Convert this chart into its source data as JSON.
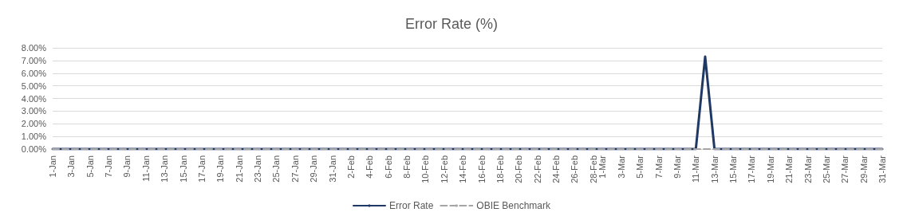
{
  "chart_data": {
    "type": "line",
    "title": "Error Rate (%)",
    "categories": [
      "1-Jan",
      null,
      "3-Jan",
      null,
      "5-Jan",
      null,
      "7-Jan",
      null,
      "9-Jan",
      null,
      "11-Jan",
      null,
      "13-Jan",
      null,
      "15-Jan",
      null,
      "17-Jan",
      null,
      "19-Jan",
      null,
      "21-Jan",
      null,
      "23-Jan",
      null,
      "25-Jan",
      null,
      "27-Jan",
      null,
      "29-Jan",
      null,
      "31-Jan",
      null,
      "2-Feb",
      null,
      "4-Feb",
      null,
      "6-Feb",
      null,
      "8-Feb",
      null,
      "10-Feb",
      null,
      "12-Feb",
      null,
      "14-Feb",
      null,
      "16-Feb",
      null,
      "18-Feb",
      null,
      "20-Feb",
      null,
      "22-Feb",
      null,
      "24-Feb",
      null,
      "26-Feb",
      null,
      "28-Feb",
      "1-Mar",
      null,
      "3-Mar",
      null,
      "5-Mar",
      null,
      "7-Mar",
      null,
      "9-Mar",
      null,
      "11-Mar",
      null,
      "13-Mar",
      null,
      "15-Mar",
      null,
      "17-Mar",
      null,
      "19-Mar",
      null,
      "21-Mar",
      null,
      "23-Mar",
      null,
      "25-Mar",
      null,
      "27-Mar",
      null,
      "29-Mar",
      null,
      "31-Mar"
    ],
    "series": [
      {
        "name": "Error Rate",
        "color": "#1f3864",
        "line_style": "solid",
        "values": [
          0,
          0,
          0,
          0,
          0,
          0,
          0,
          0,
          0,
          0,
          0,
          0,
          0,
          0,
          0,
          0,
          0,
          0,
          0,
          0,
          0,
          0,
          0,
          0,
          0,
          0,
          0,
          0,
          0,
          0,
          0,
          0,
          0,
          0,
          0,
          0,
          0,
          0,
          0,
          0,
          0,
          0,
          0,
          0,
          0,
          0,
          0,
          0,
          0,
          0,
          0,
          0,
          0,
          0,
          0,
          0,
          0,
          0,
          0,
          0,
          0,
          0,
          0,
          0,
          0,
          0,
          0,
          0,
          0,
          0,
          7.3,
          0,
          0,
          0,
          0,
          0,
          0,
          0,
          0,
          0,
          0,
          0,
          0,
          0,
          0,
          0,
          0,
          0,
          0,
          0
        ]
      },
      {
        "name": "OBIE Benchmark",
        "color": "#a5a5a5",
        "line_style": "dashed",
        "values": [
          0,
          0,
          0,
          0,
          0,
          0,
          0,
          0,
          0,
          0,
          0,
          0,
          0,
          0,
          0,
          0,
          0,
          0,
          0,
          0,
          0,
          0,
          0,
          0,
          0,
          0,
          0,
          0,
          0,
          0,
          0,
          0,
          0,
          0,
          0,
          0,
          0,
          0,
          0,
          0,
          0,
          0,
          0,
          0,
          0,
          0,
          0,
          0,
          0,
          0,
          0,
          0,
          0,
          0,
          0,
          0,
          0,
          0,
          0,
          0,
          0,
          0,
          0,
          0,
          0,
          0,
          0,
          0,
          0,
          0,
          0,
          0,
          0,
          0,
          0,
          0,
          0,
          0,
          0,
          0,
          0,
          0,
          0,
          0,
          0,
          0,
          0,
          0,
          0,
          0
        ]
      }
    ],
    "ylim": [
      0,
      8
    ],
    "yticks": [
      {
        "value": 0,
        "label": "0.00%"
      },
      {
        "value": 1,
        "label": "1.00%"
      },
      {
        "value": 2,
        "label": "2.00%"
      },
      {
        "value": 3,
        "label": "3.00%"
      },
      {
        "value": 4,
        "label": "4.00%"
      },
      {
        "value": 5,
        "label": "5.00%"
      },
      {
        "value": 6,
        "label": "6.00%"
      },
      {
        "value": 7,
        "label": "7.00%"
      },
      {
        "value": 8,
        "label": "8.00%"
      }
    ],
    "grid": "y",
    "legend": "bottom",
    "marker": "none"
  }
}
